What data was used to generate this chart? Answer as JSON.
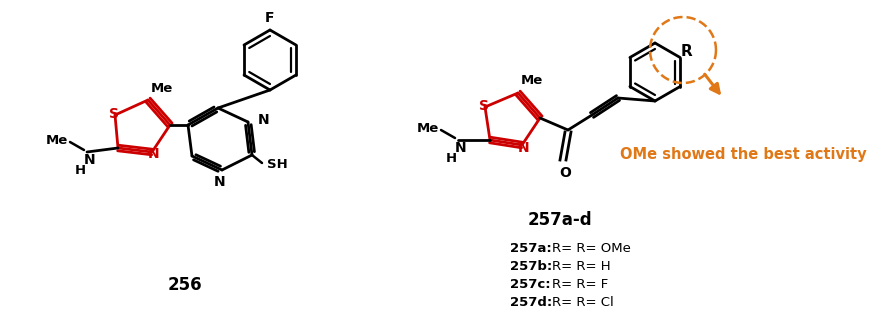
{
  "bg_color": "#ffffff",
  "black": "#000000",
  "red": "#cc0000",
  "orange": "#e07818",
  "fig_width": 8.86,
  "fig_height": 3.21,
  "dpi": 100,
  "label_256": "256",
  "label_257": "257a-d",
  "annotation_text": "OMe showed the best activity",
  "substituents": [
    "257a: R= OMe",
    "257b: R= H",
    "257c: R= F",
    "257d: R= Cl"
  ]
}
